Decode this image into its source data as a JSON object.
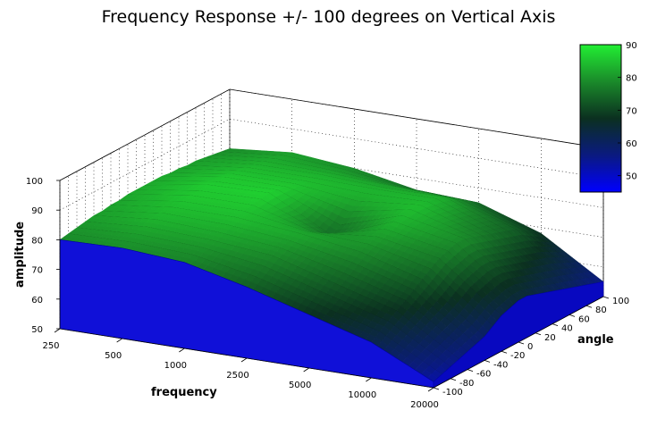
{
  "chart_data": {
    "type": "surface",
    "title": "Frequency Response +/- 100 degrees on Vertical Axis",
    "xlabel": "frequency",
    "ylabel": "angle",
    "zlabel": "amplitude",
    "frequency_ticks": [
      "250",
      "500",
      "1000",
      "2500",
      "5000",
      "10000",
      "20000"
    ],
    "angle_ticks": [
      -100,
      -80,
      -60,
      -40,
      -20,
      0,
      20,
      40,
      60,
      80,
      100
    ],
    "amplitude_ticks": [
      50,
      60,
      70,
      80,
      90,
      100
    ],
    "zlim": [
      50,
      100
    ],
    "ylim": [
      -100,
      100
    ],
    "colorbar": {
      "ticks": [
        50,
        60,
        70,
        80,
        90
      ],
      "range": [
        45,
        90
      ],
      "colors": [
        "#0000ff",
        "#0a1a70",
        "#0b3818",
        "#1a9a28",
        "#22dd33"
      ]
    },
    "grid": true,
    "angles": [
      -100,
      -90,
      -80,
      -70,
      -60,
      -50,
      -40,
      -30,
      -20,
      -10,
      0,
      10,
      20,
      30,
      40,
      50,
      60,
      70,
      80,
      90,
      100
    ],
    "freq_points": [
      250,
      500,
      1000,
      2500,
      5000,
      10000,
      20000
    ],
    "response": [
      [
        80.0,
        80.5,
        79.0,
        74.0,
        68.0,
        62.0,
        52.0
      ],
      [
        80.5,
        81.0,
        80.0,
        76.0,
        70.0,
        64.0,
        53.0
      ],
      [
        81.0,
        82.0,
        81.0,
        78.0,
        72.0,
        66.0,
        54.0
      ],
      [
        81.5,
        83.0,
        82.0,
        80.0,
        74.0,
        68.0,
        55.0
      ],
      [
        82.0,
        84.0,
        83.0,
        81.0,
        76.0,
        70.0,
        56.0
      ],
      [
        82.0,
        84.5,
        84.0,
        82.0,
        78.0,
        72.0,
        57.0
      ],
      [
        82.5,
        85.0,
        85.0,
        83.0,
        80.0,
        74.0,
        58.0
      ],
      [
        82.5,
        85.5,
        85.5,
        82.0,
        81.0,
        76.0,
        60.0
      ],
      [
        83.0,
        86.0,
        86.0,
        80.0,
        82.0,
        78.0,
        62.0
      ],
      [
        83.0,
        86.0,
        86.5,
        78.0,
        83.0,
        79.0,
        63.0
      ],
      [
        83.0,
        86.5,
        87.0,
        76.0,
        84.0,
        80.0,
        64.0
      ],
      [
        83.0,
        86.0,
        86.5,
        78.0,
        84.5,
        80.0,
        64.0
      ],
      [
        83.0,
        86.0,
        86.0,
        81.0,
        85.0,
        79.0,
        63.0
      ],
      [
        82.5,
        85.5,
        85.5,
        83.0,
        85.0,
        78.0,
        62.0
      ],
      [
        82.5,
        85.0,
        85.0,
        84.0,
        84.5,
        77.0,
        61.0
      ],
      [
        82.0,
        84.5,
        84.5,
        84.0,
        84.0,
        76.0,
        60.0
      ],
      [
        82.0,
        84.0,
        84.0,
        83.0,
        83.0,
        75.0,
        59.0
      ],
      [
        81.5,
        83.5,
        83.0,
        82.0,
        81.0,
        74.0,
        58.0
      ],
      [
        81.0,
        83.0,
        82.0,
        80.0,
        79.0,
        72.0,
        57.0
      ],
      [
        80.5,
        82.5,
        81.0,
        78.0,
        77.0,
        70.0,
        56.0
      ],
      [
        80.0,
        82.0,
        80.0,
        76.0,
        75.0,
        68.0,
        55.0
      ]
    ]
  }
}
